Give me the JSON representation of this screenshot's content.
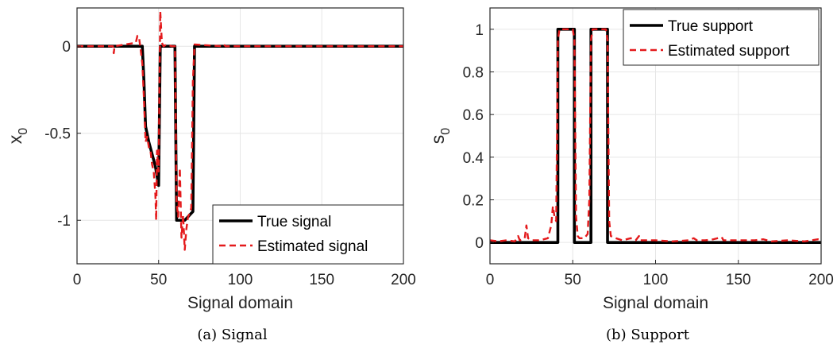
{
  "colors": {
    "true": "#000000",
    "estimated": "#e41a1c",
    "grid": "#e6e6e6",
    "axis": "#262626"
  },
  "chart_data": [
    {
      "type": "line",
      "caption": "(a) Signal",
      "xlabel": "Signal domain",
      "ylabel": "x",
      "ylabel_sub": "0",
      "xlim": [
        0,
        200
      ],
      "ylim": [
        -1.25,
        0.22
      ],
      "xticks": [
        0,
        50,
        100,
        150,
        200
      ],
      "yticks": [
        0,
        -0.5,
        -1
      ],
      "ytick_labels": [
        "0",
        "-0.5",
        "-1"
      ],
      "grid": true,
      "legend_position": "bottom-right",
      "series": [
        {
          "name": "True signal",
          "style": "solid",
          "points": [
            [
              0,
              0
            ],
            [
              40,
              0
            ],
            [
              41,
              -0.2
            ],
            [
              42,
              -0.46
            ],
            [
              44,
              -0.55
            ],
            [
              46,
              -0.62
            ],
            [
              48,
              -0.69
            ],
            [
              50,
              -0.8
            ],
            [
              51,
              0
            ],
            [
              60,
              0
            ],
            [
              61,
              -1.0
            ],
            [
              66,
              -1.0
            ],
            [
              71,
              -0.95
            ],
            [
              72,
              0
            ],
            [
              200,
              0
            ]
          ]
        },
        {
          "name": "Estimated signal",
          "style": "dashed",
          "points": [
            [
              0,
              0
            ],
            [
              22,
              0
            ],
            [
              22.5,
              -0.04
            ],
            [
              23,
              0
            ],
            [
              36,
              0.02
            ],
            [
              37,
              0.06
            ],
            [
              38,
              0.05
            ],
            [
              39,
              -0.02
            ],
            [
              40,
              -0.1
            ],
            [
              41,
              -0.3
            ],
            [
              42,
              -0.55
            ],
            [
              43,
              -0.52
            ],
            [
              44,
              -0.58
            ],
            [
              45,
              -0.6
            ],
            [
              46,
              -0.68
            ],
            [
              47,
              -0.72
            ],
            [
              48,
              -0.85
            ],
            [
              48.5,
              -1.0
            ],
            [
              49,
              -0.6
            ],
            [
              50,
              -0.72
            ],
            [
              51,
              0.2
            ],
            [
              52,
              0.02
            ],
            [
              53,
              0
            ],
            [
              55,
              0.01
            ],
            [
              58,
              0
            ],
            [
              60,
              0
            ],
            [
              61,
              -0.9
            ],
            [
              62,
              -0.98
            ],
            [
              63,
              -0.7
            ],
            [
              64,
              -1.1
            ],
            [
              65,
              -0.97
            ],
            [
              66,
              -1.17
            ],
            [
              67,
              -1.05
            ],
            [
              68,
              -0.98
            ],
            [
              69,
              -0.96
            ],
            [
              70,
              -0.93
            ],
            [
              71,
              -0.2
            ],
            [
              72,
              0.01
            ],
            [
              89,
              0
            ],
            [
              90,
              0.01
            ],
            [
              91,
              0
            ],
            [
              200,
              0
            ]
          ]
        }
      ]
    },
    {
      "type": "line",
      "caption": "(b) Support",
      "xlabel": "Signal domain",
      "ylabel": "s",
      "ylabel_sub": "0",
      "xlim": [
        0,
        200
      ],
      "ylim": [
        -0.1,
        1.1
      ],
      "xticks": [
        0,
        50,
        100,
        150,
        200
      ],
      "yticks": [
        0,
        0.2,
        0.4,
        0.6,
        0.8,
        1
      ],
      "ytick_labels": [
        "0",
        "0.2",
        "0.4",
        "0.6",
        "0.8",
        "1"
      ],
      "grid": true,
      "legend_position": "top-right",
      "series": [
        {
          "name": "True support",
          "style": "solid",
          "points": [
            [
              0,
              0
            ],
            [
              41,
              0
            ],
            [
              41,
              1
            ],
            [
              51,
              1
            ],
            [
              51,
              0
            ],
            [
              61,
              0
            ],
            [
              61,
              1
            ],
            [
              71,
              1
            ],
            [
              71,
              0
            ],
            [
              200,
              0
            ]
          ]
        },
        {
          "name": "Estimated support",
          "style": "dashed",
          "points": [
            [
              0,
              0.01
            ],
            [
              5,
              0.005
            ],
            [
              10,
              0.01
            ],
            [
              15,
              0.005
            ],
            [
              17,
              0.03
            ],
            [
              18,
              0.01
            ],
            [
              21,
              0.02
            ],
            [
              22,
              0.08
            ],
            [
              23,
              0.02
            ],
            [
              25,
              0.01
            ],
            [
              30,
              0.01
            ],
            [
              35,
              0.02
            ],
            [
              37,
              0.08
            ],
            [
              38,
              0.17
            ],
            [
              39,
              0.12
            ],
            [
              40,
              0.1
            ],
            [
              41,
              0.95
            ],
            [
              42,
              1.0
            ],
            [
              50,
              1.0
            ],
            [
              51,
              0.95
            ],
            [
              52,
              0.12
            ],
            [
              53,
              0.03
            ],
            [
              54,
              0.02
            ],
            [
              57,
              0.02
            ],
            [
              59,
              0.04
            ],
            [
              60,
              0.2
            ],
            [
              61,
              0.95
            ],
            [
              62,
              1.0
            ],
            [
              70,
              1.0
            ],
            [
              71,
              0.95
            ],
            [
              72,
              0.1
            ],
            [
              73,
              0.03
            ],
            [
              76,
              0.02
            ],
            [
              80,
              0.01
            ],
            [
              85,
              0.02
            ],
            [
              88,
              0.01
            ],
            [
              90,
              0.03
            ],
            [
              91,
              0.01
            ],
            [
              100,
              0.01
            ],
            [
              110,
              0.005
            ],
            [
              120,
              0.01
            ],
            [
              123,
              0.02
            ],
            [
              125,
              0.01
            ],
            [
              130,
              0.01
            ],
            [
              135,
              0.015
            ],
            [
              140,
              0.025
            ],
            [
              141,
              0.01
            ],
            [
              150,
              0.01
            ],
            [
              160,
              0.01
            ],
            [
              165,
              0.015
            ],
            [
              170,
              0.005
            ],
            [
              180,
              0.01
            ],
            [
              190,
              0.005
            ],
            [
              198,
              0.015
            ],
            [
              200,
              0.01
            ]
          ]
        }
      ]
    }
  ]
}
